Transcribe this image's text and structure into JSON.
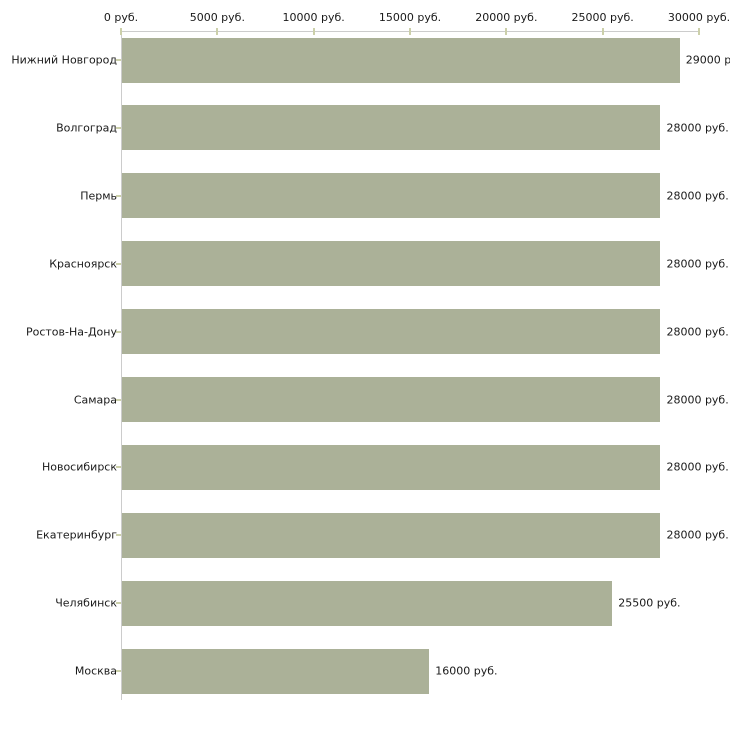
{
  "chart_data": {
    "type": "bar",
    "orientation": "horizontal",
    "title": "",
    "xlabel": "",
    "ylabel": "",
    "categories": [
      "Нижний Новгород",
      "Волгоград",
      "Пермь",
      "Красноярск",
      "Ростов-На-Дону",
      "Самара",
      "Новосибирск",
      "Екатеринбург",
      "Челябинск",
      "Москва"
    ],
    "values": [
      29000,
      28000,
      28000,
      28000,
      28000,
      28000,
      28000,
      28000,
      25500,
      16000
    ],
    "value_labels": [
      "29000 руб.",
      "28000 руб.",
      "28000 руб.",
      "28000 руб.",
      "28000 руб.",
      "28000 руб.",
      "28000 руб.",
      "28000 руб.",
      "25500 руб.",
      "16000 руб."
    ],
    "x_axis": {
      "position": "top",
      "range": [
        0,
        30000
      ],
      "ticks": [
        0,
        5000,
        10000,
        15000,
        20000,
        25000,
        30000
      ],
      "tick_labels": [
        "0 руб.",
        "5000 руб.",
        "10000 руб.",
        "15000 руб.",
        "20000 руб.",
        "25000 руб.",
        "30000 руб."
      ]
    },
    "grid": false,
    "legend": false,
    "colors": {
      "bar": "#abb198",
      "axis_line": "#cccccc",
      "tick_mark": "#ccd0aa",
      "text": "#1a1a1a",
      "background": "#ffffff"
    }
  }
}
